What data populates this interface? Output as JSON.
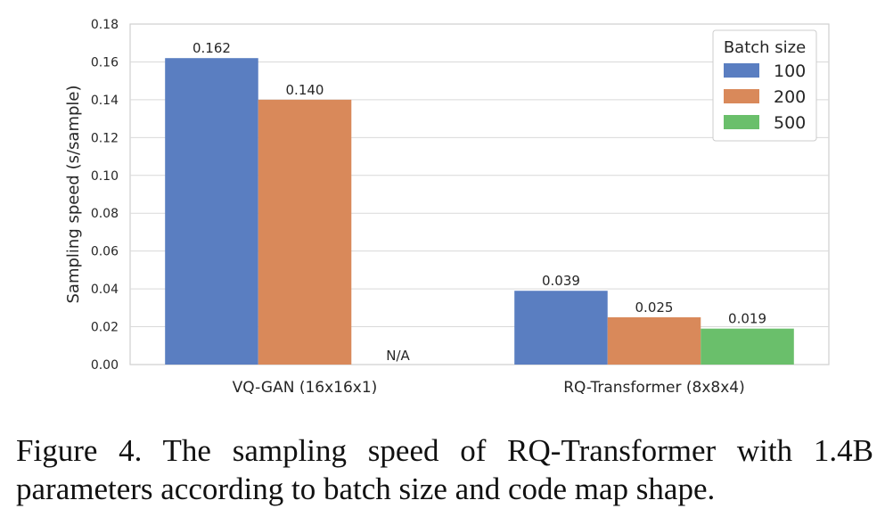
{
  "chart_data": {
    "type": "bar",
    "title": "",
    "xlabel": "",
    "ylabel": "Sampling speed (s/sample)",
    "ylim": [
      0,
      0.18
    ],
    "yticks": [
      "0.00",
      "0.02",
      "0.04",
      "0.06",
      "0.08",
      "0.10",
      "0.12",
      "0.14",
      "0.16",
      "0.18"
    ],
    "grid": true,
    "categories": [
      "VQ-GAN (16x16x1)",
      "RQ-Transformer (8x8x4)"
    ],
    "legend_title": "Batch size",
    "legend_position": "top-right",
    "series": [
      {
        "name": "100",
        "color": "#5a7ec1",
        "values": [
          0.162,
          0.039
        ],
        "labels": [
          "0.162",
          "0.039"
        ]
      },
      {
        "name": "200",
        "color": "#d9895a",
        "values": [
          0.14,
          0.025
        ],
        "labels": [
          "0.140",
          "0.025"
        ]
      },
      {
        "name": "500",
        "color": "#6abf6b",
        "values": [
          null,
          0.019
        ],
        "labels": [
          "N/A",
          "0.019"
        ]
      }
    ]
  },
  "caption": {
    "text": "Figure 4.  The sampling speed of RQ-Transformer with 1.4B parameters according to batch size and code map shape."
  }
}
